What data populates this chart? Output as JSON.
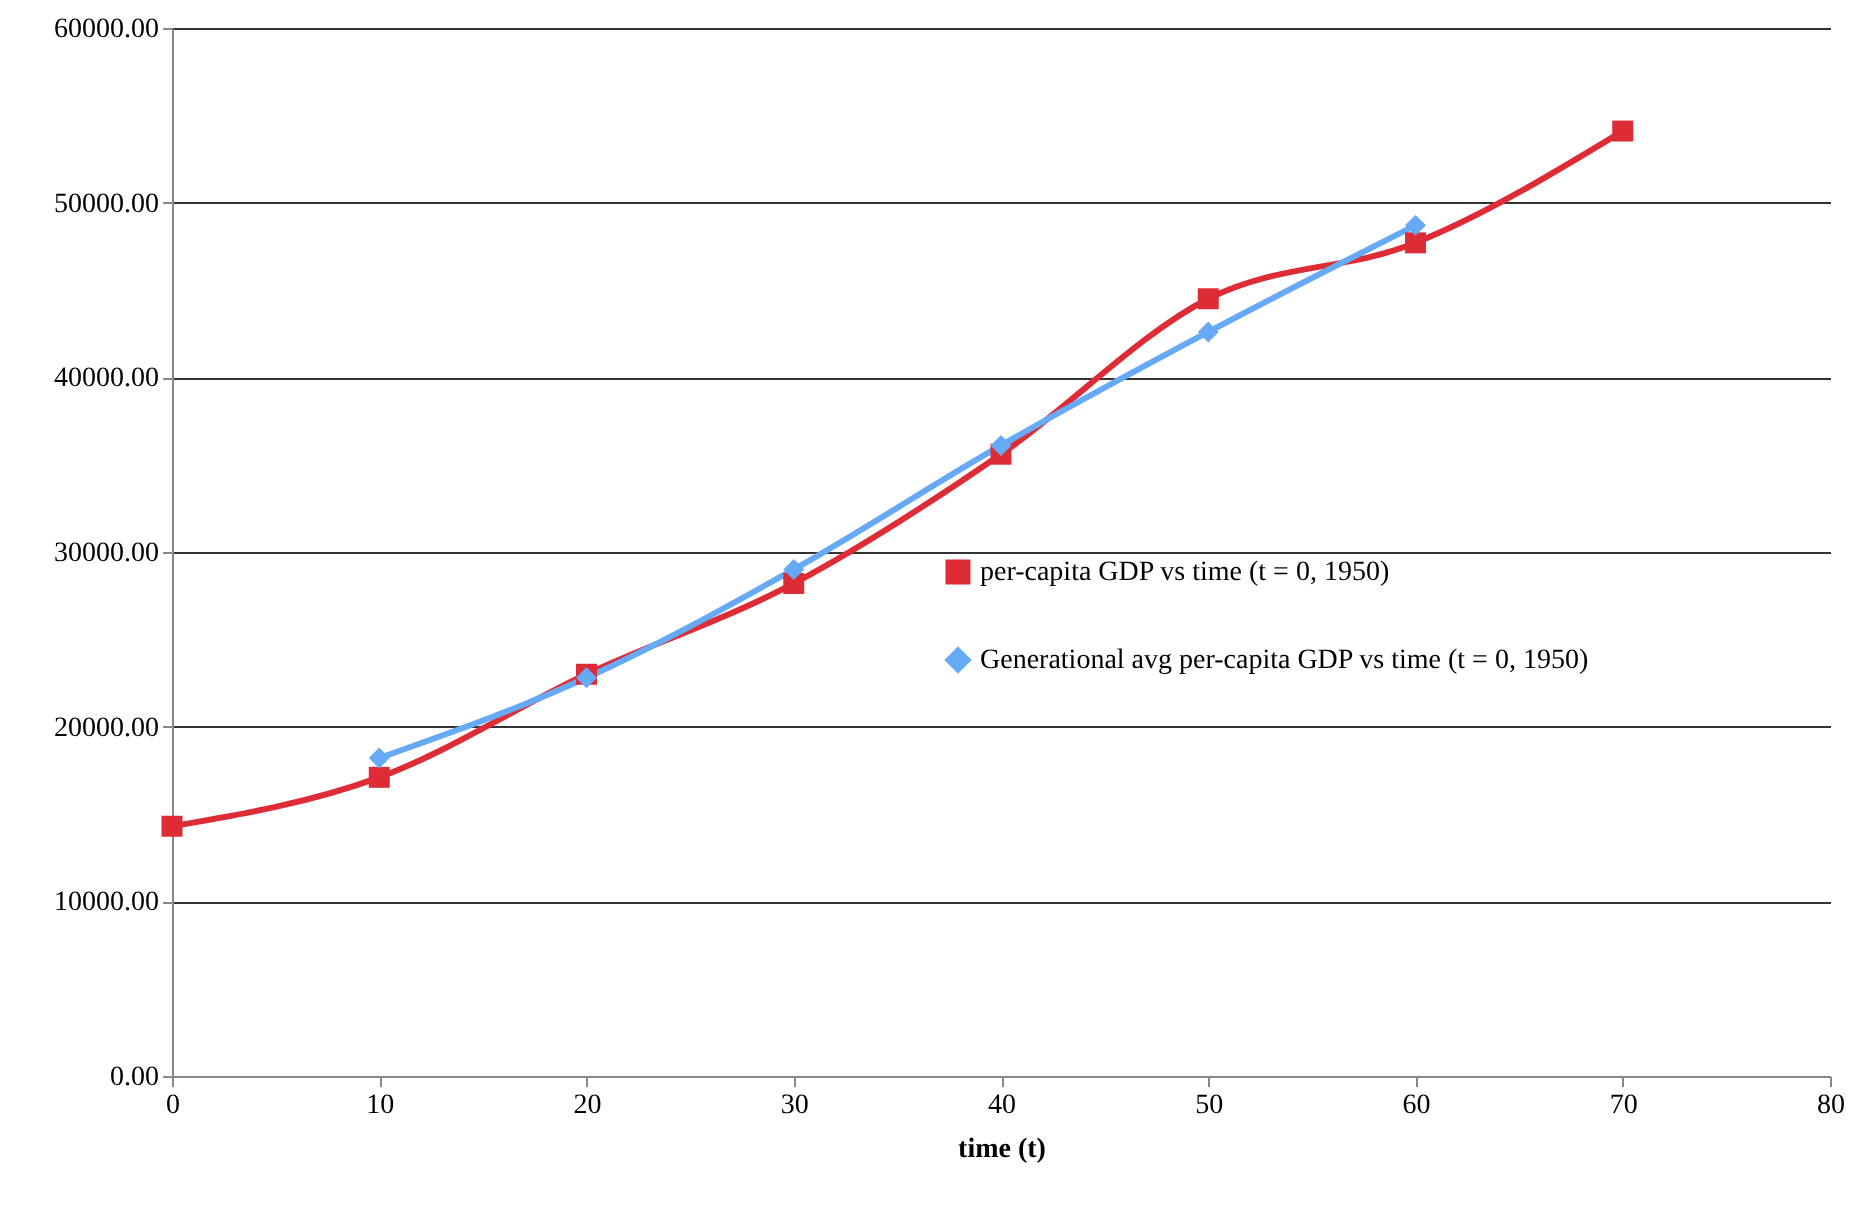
{
  "chart_data": {
    "type": "line",
    "xlabel": "time (t)",
    "x": [
      0,
      10,
      20,
      30,
      40,
      50,
      60,
      70
    ],
    "series": [
      {
        "name": "per-capita GDP vs time (t = 0, 1950)",
        "color": "#dd2c35",
        "marker": "square",
        "values": [
          14300,
          17100,
          23000,
          28200,
          35600,
          44500,
          47700,
          54100
        ]
      },
      {
        "name": "Generational avg per-capita GDP vs time (t = 0, 1950)",
        "color": "#66aaf5",
        "marker": "diamond",
        "values": [
          null,
          18200,
          22800,
          29000,
          36100,
          42600,
          48700,
          null
        ]
      }
    ],
    "xlim": [
      0,
      80
    ],
    "xticks": [
      0,
      10,
      20,
      30,
      40,
      50,
      60,
      70,
      80
    ],
    "ylim": [
      0,
      60000
    ],
    "yticks": [
      {
        "value": 0,
        "label": "0.00"
      },
      {
        "value": 10000,
        "label": "10000.00"
      },
      {
        "value": 20000,
        "label": "20000.00"
      },
      {
        "value": 30000,
        "label": "30000.00"
      },
      {
        "value": 40000,
        "label": "40000.00"
      },
      {
        "value": 50000,
        "label": "50000.00"
      },
      {
        "value": 60000,
        "label": "60000.00"
      }
    ],
    "grid": "y",
    "legend": "right",
    "line_style": "solid"
  }
}
